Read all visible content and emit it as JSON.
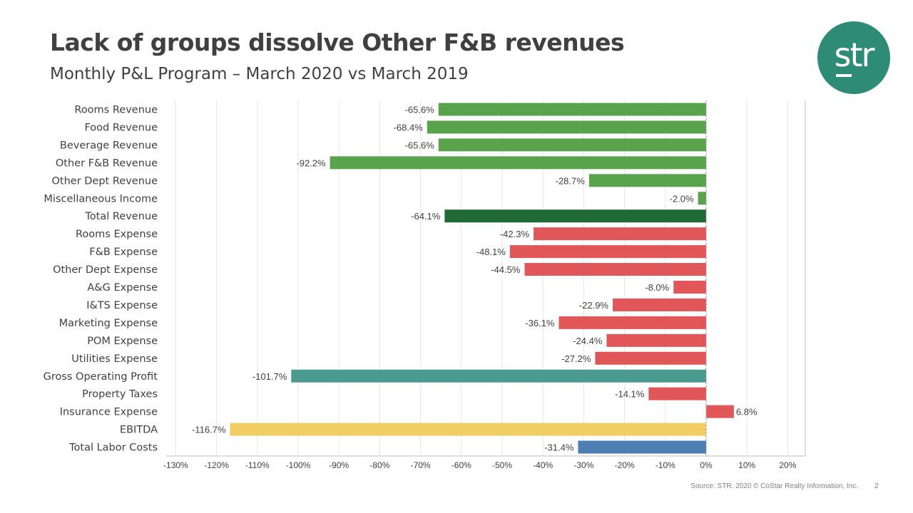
{
  "slide": {
    "title": "Lack of groups dissolve Other F&B revenues",
    "subtitle": "Monthly P&L Program – March 2020 vs March 2019",
    "logo_text": "str",
    "source": "Source: STR. 2020 © CoStar Realty Information, Inc.",
    "page_number": "2"
  },
  "colors": {
    "revenue": "#5aa34d",
    "total_revenue": "#206a38",
    "expense": "#e15759",
    "gop": "#4a9a90",
    "ebitda": "#f2cd63",
    "labor": "#4e7fb2",
    "grid": "#e6e6e6",
    "axis": "#bfbfbf"
  },
  "chart_data": {
    "type": "bar",
    "orientation": "horizontal",
    "title": "",
    "xlabel": "",
    "ylabel": "",
    "xlim": [
      -130,
      20
    ],
    "x_ticks": [
      -130,
      -120,
      -110,
      -100,
      -90,
      -80,
      -70,
      -60,
      -50,
      -40,
      -30,
      -20,
      -10,
      0,
      10,
      20
    ],
    "x_tick_labels": [
      "-130%",
      "-120%",
      "-110%",
      "-100%",
      "-90%",
      "-80%",
      "-70%",
      "-60%",
      "-50%",
      "-40%",
      "-30%",
      "-20%",
      "-10%",
      "0%",
      "10%",
      "20%"
    ],
    "grid": true,
    "categories": [
      "Rooms Revenue",
      "Food Revenue",
      "Beverage Revenue",
      "Other F&B Revenue",
      "Other Dept Revenue",
      "Miscellaneous Income",
      "Total Revenue",
      "Rooms Expense",
      "F&B Expense",
      "Other Dept Expense",
      "A&G Expense",
      "I&TS Expense",
      "Marketing Expense",
      "POM Expense",
      "Utilities Expense",
      "Gross Operating Profit",
      "Property Taxes",
      "Insurance Expense",
      "EBITDA",
      "Total Labor Costs"
    ],
    "values": [
      -65.6,
      -68.4,
      -65.6,
      -92.2,
      -28.7,
      -2.0,
      -64.1,
      -42.3,
      -48.1,
      -44.5,
      -8.0,
      -22.9,
      -36.1,
      -24.4,
      -27.2,
      -101.7,
      -14.1,
      6.8,
      -116.7,
      -31.4
    ],
    "value_labels": [
      "-65.6%",
      "-68.4%",
      "-65.6%",
      "-92.2%",
      "-28.7%",
      "-2.0%",
      "-64.1%",
      "-42.3%",
      "-48.1%",
      "-44.5%",
      "-8.0%",
      "-22.9%",
      "-36.1%",
      "-24.4%",
      "-27.2%",
      "-101.7%",
      "-14.1%",
      "6.8%",
      "-116.7%",
      "-31.4%"
    ],
    "bar_groups": [
      "revenue",
      "revenue",
      "revenue",
      "revenue",
      "revenue",
      "revenue",
      "total_revenue",
      "expense",
      "expense",
      "expense",
      "expense",
      "expense",
      "expense",
      "expense",
      "expense",
      "gop",
      "expense",
      "expense",
      "ebitda",
      "labor"
    ]
  }
}
